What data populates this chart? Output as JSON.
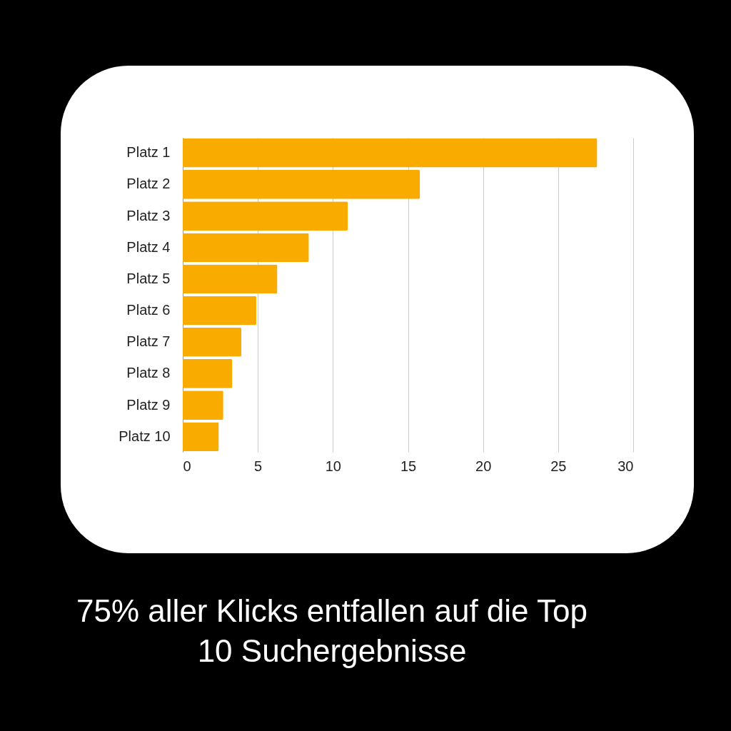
{
  "chart_data": {
    "type": "bar",
    "orientation": "horizontal",
    "title": "75% aller Klicks entfallen auf die Top 10 Suchergebnisse",
    "categories": [
      "Platz 1",
      "Platz 2",
      "Platz 3",
      "Platz 4",
      "Platz 5",
      "Platz 6",
      "Platz 7",
      "Platz 8",
      "Platz 9",
      "Platz 10"
    ],
    "values": [
      27.6,
      15.8,
      11.0,
      8.4,
      6.3,
      4.9,
      3.9,
      3.3,
      2.7,
      2.4
    ],
    "color": "#f9ab00",
    "xlim": [
      0,
      30
    ],
    "xticks": [
      0,
      5,
      10,
      15,
      20,
      25,
      30
    ],
    "grid": "x"
  }
}
